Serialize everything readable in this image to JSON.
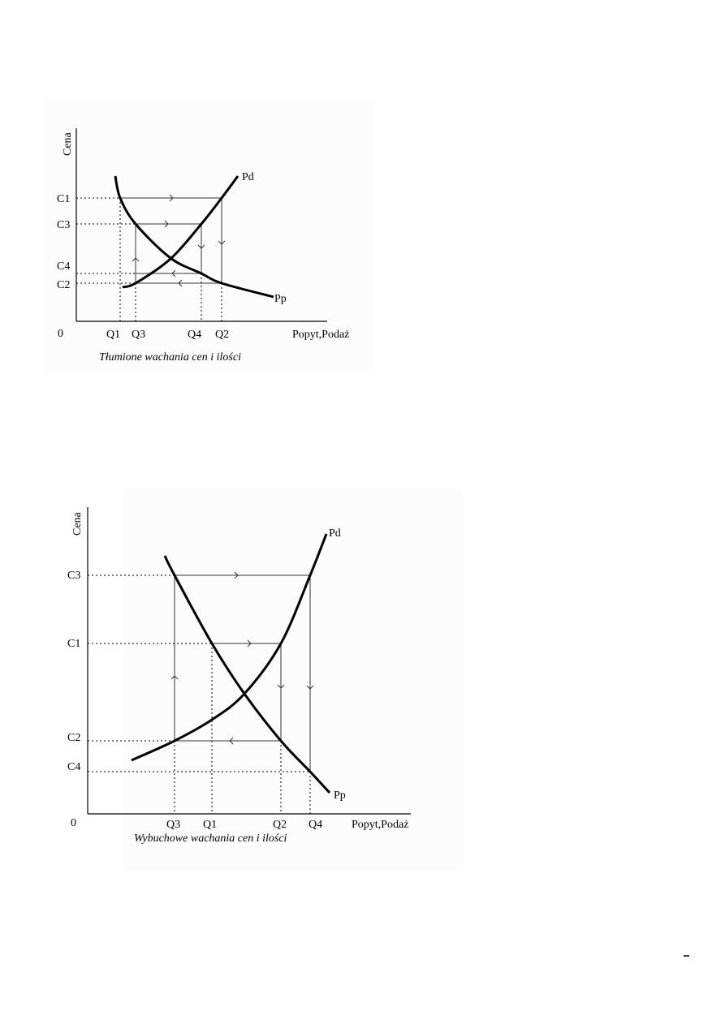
{
  "diagrams": [
    {
      "y_axis_label": "Cena",
      "x_axis_label": "Popyt,Podaż",
      "origin_label": "0",
      "price_labels": [
        "C1",
        "C3",
        "C4",
        "C2"
      ],
      "quantity_labels": [
        "Q1",
        "Q3",
        "Q4",
        "Q2"
      ],
      "demand_curve_label": "Pp",
      "supply_curve_label": "Pd",
      "caption": "Tłumione wachania cen i ilości"
    },
    {
      "y_axis_label": "Cena",
      "x_axis_label": "Popyt,Podaż",
      "origin_label": "0",
      "price_labels": [
        "C3",
        "C1",
        "C2",
        "C4"
      ],
      "quantity_labels": [
        "Q3",
        "Q1",
        "Q2",
        "Q4"
      ],
      "demand_curve_label": "Pp",
      "supply_curve_label": "Pd",
      "caption": "Wybuchowe wachania cen i ilości"
    }
  ],
  "colors": {
    "curve": "#000000",
    "path": "#333333"
  }
}
